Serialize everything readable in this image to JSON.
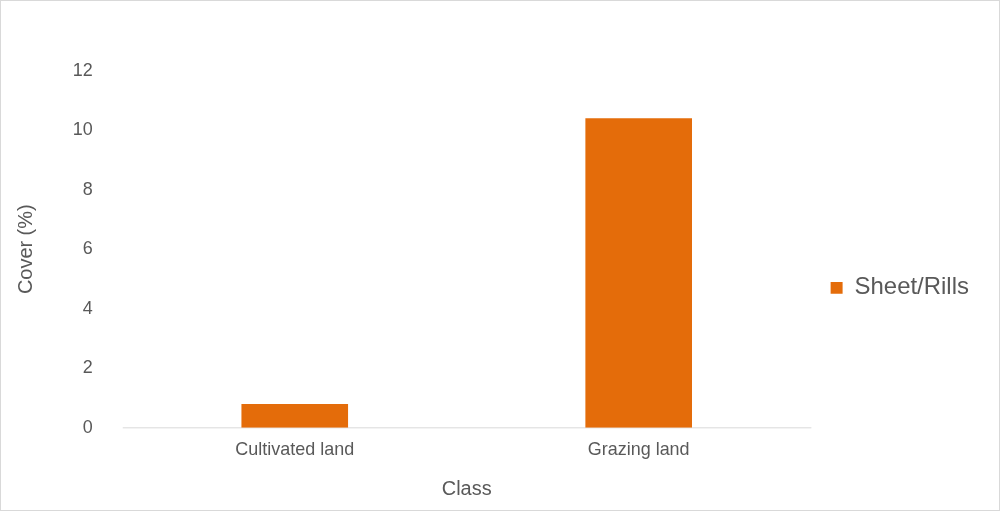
{
  "chart_data": {
    "type": "bar",
    "xlabel": "Class",
    "ylabel": "Cover (%)",
    "categories": [
      "Cultivated land",
      "Grazing land"
    ],
    "series": [
      {
        "name": "Sheet/Rills",
        "color": "#e46c0a",
        "values": [
          0.8,
          10.4
        ]
      }
    ],
    "ylim": [
      0,
      12
    ],
    "yticks": [
      0,
      2,
      4,
      6,
      8,
      10,
      12
    ],
    "grid": false,
    "legend": "right"
  }
}
